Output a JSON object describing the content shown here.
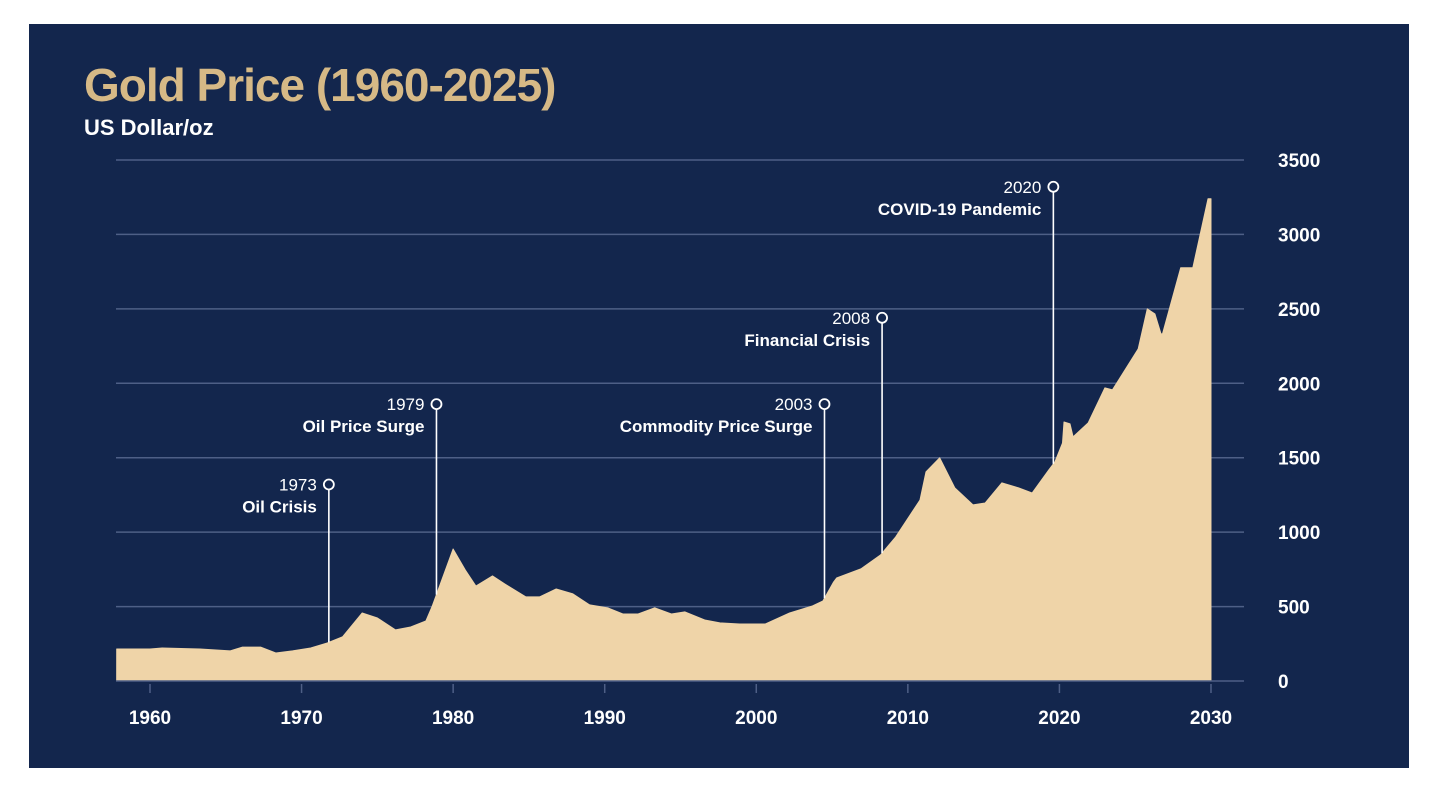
{
  "colors": {
    "background": "#13264d",
    "area_fill": "#efd4a8",
    "title": "#d6b986",
    "text": "#ffffff",
    "gridline": "#4e5f86"
  },
  "chart_data": {
    "type": "area",
    "title": "Gold Price (1960-2025)",
    "subtitle": "US Dollar/oz",
    "xlabel": "",
    "ylabel": "US Dollar/oz",
    "xlim": [
      1957.8,
      2032
    ],
    "ylim": [
      0,
      3500
    ],
    "grid": true,
    "y_axis_position": "right",
    "x_ticks": [
      1960,
      1970,
      1980,
      1990,
      2000,
      2010,
      2020,
      2030
    ],
    "x_tick_labels": [
      "1960",
      "1970",
      "1980",
      "1990",
      "2000",
      "2010",
      "2020",
      "2030"
    ],
    "y_ticks": [
      0,
      500,
      1000,
      1500,
      2000,
      2500,
      3000,
      3500
    ],
    "y_tick_labels": [
      "0",
      "500",
      "1000",
      "1500",
      "2000",
      "2500",
      "3000",
      "3500"
    ],
    "series": [
      {
        "name": "Gold Price",
        "x": [
          1957.8,
          1960.0,
          1960.8,
          1963.3,
          1965.3,
          1966.1,
          1967.3,
          1968.3,
          1969.4,
          1970.6,
          1971.7,
          1972.7,
          1974.0,
          1975.0,
          1976.2,
          1977.2,
          1978.2,
          1978.6,
          1980.0,
          1980.8,
          1981.5,
          1982.6,
          1983.4,
          1984.8,
          1985.7,
          1986.8,
          1987.9,
          1989.0,
          1990.2,
          1991.2,
          1992.2,
          1993.3,
          1994.4,
          1995.3,
          1996.6,
          1997.6,
          1998.9,
          2000.6,
          2002.2,
          2003.7,
          2004.4,
          2005.1,
          2005.3,
          2006.9,
          2008.2,
          2009.2,
          2010.8,
          2011.2,
          2012.1,
          2013.1,
          2014.3,
          2015.1,
          2016.2,
          2017.3,
          2018.2,
          2019.3,
          2019.7,
          2020.2,
          2020.3,
          2020.7,
          2020.9,
          2021.9,
          2023.0,
          2023.5,
          2025.2,
          2025.8,
          2026.3,
          2026.7,
          2026.8,
          2028.0,
          2028.8,
          2029.8,
          2030.0
        ],
        "y": [
          215,
          215,
          222,
          215,
          202,
          228,
          228,
          188,
          202,
          222,
          255,
          296,
          457,
          423,
          343,
          363,
          403,
          497,
          887,
          746,
          638,
          706,
          652,
          565,
          565,
          618,
          585,
          511,
          491,
          450,
          450,
          491,
          450,
          464,
          410,
          390,
          383,
          383,
          457,
          504,
          538,
          665,
          692,
          753,
          847,
          968,
          1216,
          1405,
          1499,
          1297,
          1183,
          1196,
          1331,
          1297,
          1263,
          1418,
          1472,
          1599,
          1740,
          1727,
          1640,
          1734,
          1969,
          1956,
          2231,
          2500,
          2466,
          2332,
          2332,
          2776,
          2776,
          3239,
          3239
        ]
      }
    ],
    "annotations": [
      {
        "year": "1973",
        "label": "Oil Crisis",
        "x": 1971.8,
        "y": 1320
      },
      {
        "year": "1979",
        "label": "Oil Price Surge",
        "x": 1978.9,
        "y": 1860
      },
      {
        "year": "2003",
        "label": "Commodity Price Surge",
        "x": 2004.5,
        "y": 1860
      },
      {
        "year": "2008",
        "label": "Financial Crisis",
        "x": 2008.3,
        "y": 2440
      },
      {
        "year": "2020",
        "label": "COVID-19 Pandemic",
        "x": 2019.6,
        "y": 3320
      }
    ]
  }
}
